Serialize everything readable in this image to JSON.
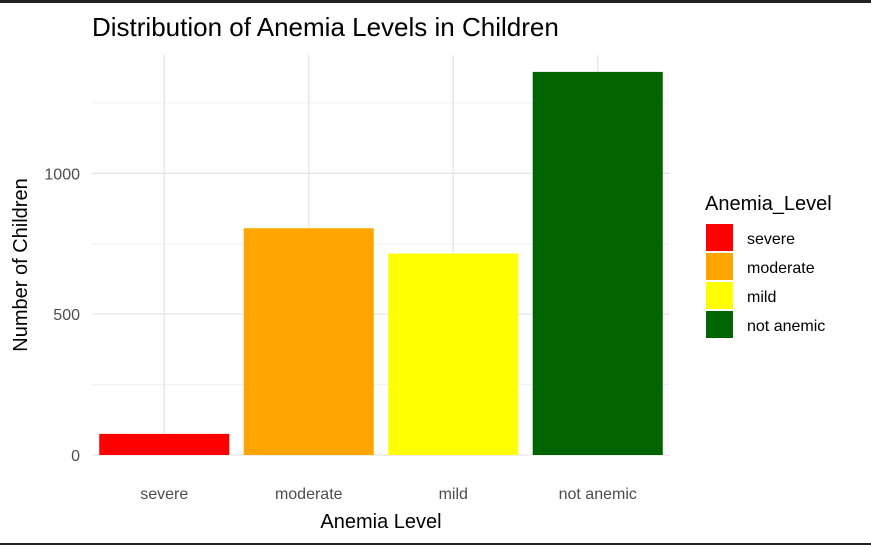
{
  "chart_data": {
    "type": "bar",
    "title": "Distribution of Anemia Levels in Children",
    "xlabel": "Anemia Level",
    "ylabel": "Number of Children",
    "categories": [
      "severe",
      "moderate",
      "mild",
      "not anemic"
    ],
    "values": [
      75,
      805,
      715,
      1360
    ],
    "colors": [
      "#ff0000",
      "#ffa500",
      "#ffff00",
      "#006400"
    ],
    "ylim": [
      0,
      1420
    ],
    "yticks": [
      0,
      500,
      1000
    ],
    "grid": true,
    "legend": {
      "title": "Anemia_Level",
      "placement": "right",
      "entries": [
        "severe",
        "moderate",
        "mild",
        "not anemic"
      ]
    }
  }
}
